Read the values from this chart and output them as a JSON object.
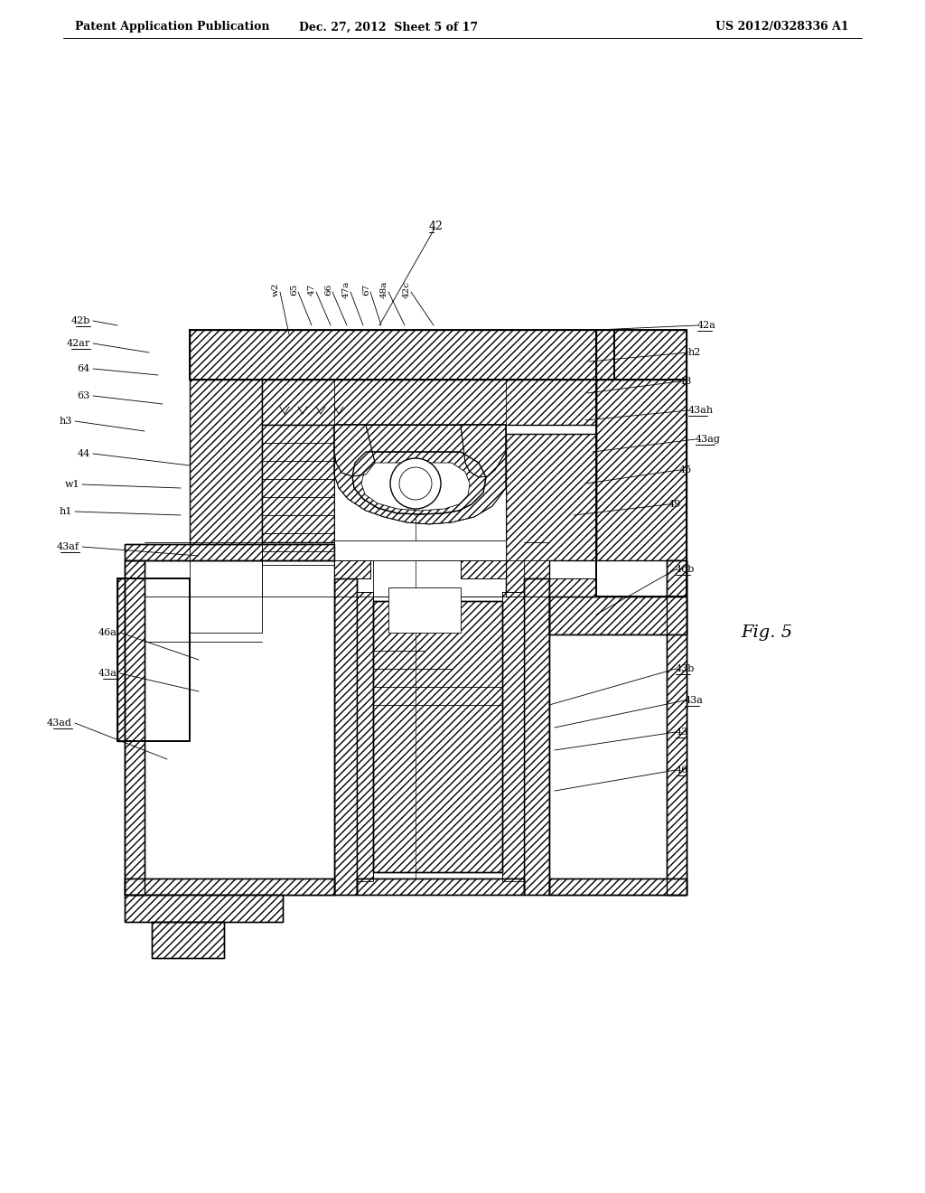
{
  "bg_color": "#ffffff",
  "header_left": "Patent Application Publication",
  "header_center": "Dec. 27, 2012  Sheet 5 of 17",
  "header_right": "US 2012/0328336 A1",
  "fig_label": "Fig. 5"
}
